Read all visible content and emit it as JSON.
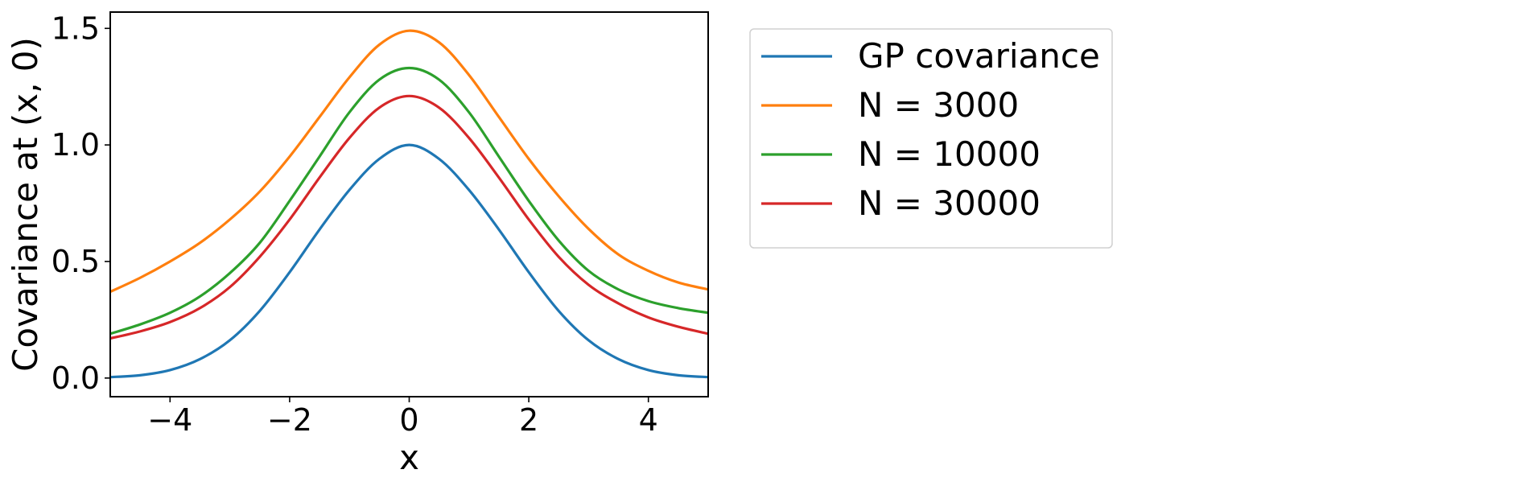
{
  "chart_data": {
    "type": "line",
    "title": "",
    "xlabel": "x",
    "ylabel": "Covariance at (x, 0)",
    "xlim": [
      -5,
      5
    ],
    "ylim": [
      -0.08,
      1.57
    ],
    "x_ticks": [
      -4,
      -2,
      0,
      2,
      4
    ],
    "x_tick_labels": [
      "−4",
      "−2",
      "0",
      "2",
      "4"
    ],
    "y_ticks": [
      0.0,
      0.5,
      1.0,
      1.5
    ],
    "y_tick_labels": [
      "0.0",
      "0.5",
      "1.0",
      "1.5"
    ],
    "grid": false,
    "legend_position": "outside-right",
    "x": [
      -5,
      -4.5,
      -4,
      -3.5,
      -3,
      -2.5,
      -2,
      -1.5,
      -1,
      -0.5,
      0,
      0.5,
      1,
      1.5,
      2,
      2.5,
      3,
      3.5,
      4,
      4.5,
      5
    ],
    "series": [
      {
        "name": "GP covariance",
        "color": "#1f77b4",
        "values": [
          0.004,
          0.012,
          0.034,
          0.081,
          0.162,
          0.288,
          0.454,
          0.637,
          0.807,
          0.94,
          1.0,
          0.94,
          0.807,
          0.637,
          0.454,
          0.288,
          0.162,
          0.081,
          0.034,
          0.012,
          0.004
        ]
      },
      {
        "name": "N = 3000",
        "color": "#ff7f0e",
        "values": [
          0.37,
          0.43,
          0.5,
          0.58,
          0.68,
          0.8,
          0.95,
          1.12,
          1.29,
          1.43,
          1.49,
          1.44,
          1.3,
          1.12,
          0.94,
          0.78,
          0.64,
          0.53,
          0.46,
          0.41,
          0.38
        ]
      },
      {
        "name": "N = 10000",
        "color": "#2ca02c",
        "values": [
          0.19,
          0.23,
          0.28,
          0.35,
          0.45,
          0.58,
          0.76,
          0.95,
          1.14,
          1.28,
          1.33,
          1.28,
          1.14,
          0.95,
          0.76,
          0.59,
          0.46,
          0.38,
          0.33,
          0.3,
          0.28
        ]
      },
      {
        "name": "N = 30000",
        "color": "#d62728",
        "values": [
          0.17,
          0.2,
          0.24,
          0.3,
          0.39,
          0.52,
          0.68,
          0.86,
          1.03,
          1.16,
          1.21,
          1.16,
          1.03,
          0.86,
          0.68,
          0.52,
          0.4,
          0.32,
          0.26,
          0.22,
          0.19
        ]
      }
    ]
  }
}
